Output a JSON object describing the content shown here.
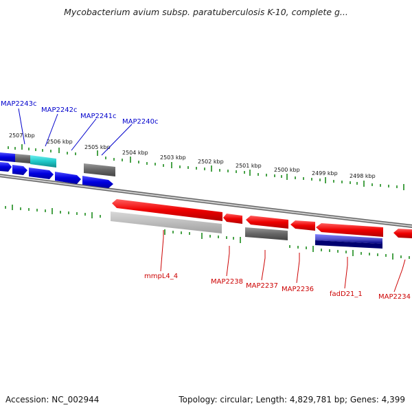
{
  "title": "Mycobacterium avium subsp. paratuberculosis K-10, complete g...",
  "footer": {
    "accession": "Accession: NC_002944",
    "stats": "Topology: circular; Length: 4,829,781 bp; Genes: 4,399"
  },
  "colors": {
    "forward_gene": "#0000e0",
    "reverse_gene": "#e00000",
    "track_ticks": "#1a8a1a",
    "backbone": "#888888",
    "label_forward": "#0000cc",
    "label_reverse": "#cc0000"
  },
  "scale_labels": [
    {
      "text": "2507 kbp"
    },
    {
      "text": "2506 kbp"
    },
    {
      "text": "2505 kbp"
    },
    {
      "text": "2504 kbp"
    },
    {
      "text": "2503 kbp"
    },
    {
      "text": "2502 kbp"
    },
    {
      "text": "2501 kbp"
    },
    {
      "text": "2500 kbp"
    },
    {
      "text": "2499 kbp"
    },
    {
      "text": "2498 kbp"
    }
  ],
  "forward_gene_labels": [
    "MAP2243c",
    "MAP2242c",
    "MAP2241c",
    "MAP2240c"
  ],
  "reverse_gene_labels": [
    "mmpL4_4",
    "MAP2238",
    "MAP2237",
    "MAP2236",
    "fadD21_1",
    "MAP2234"
  ]
}
